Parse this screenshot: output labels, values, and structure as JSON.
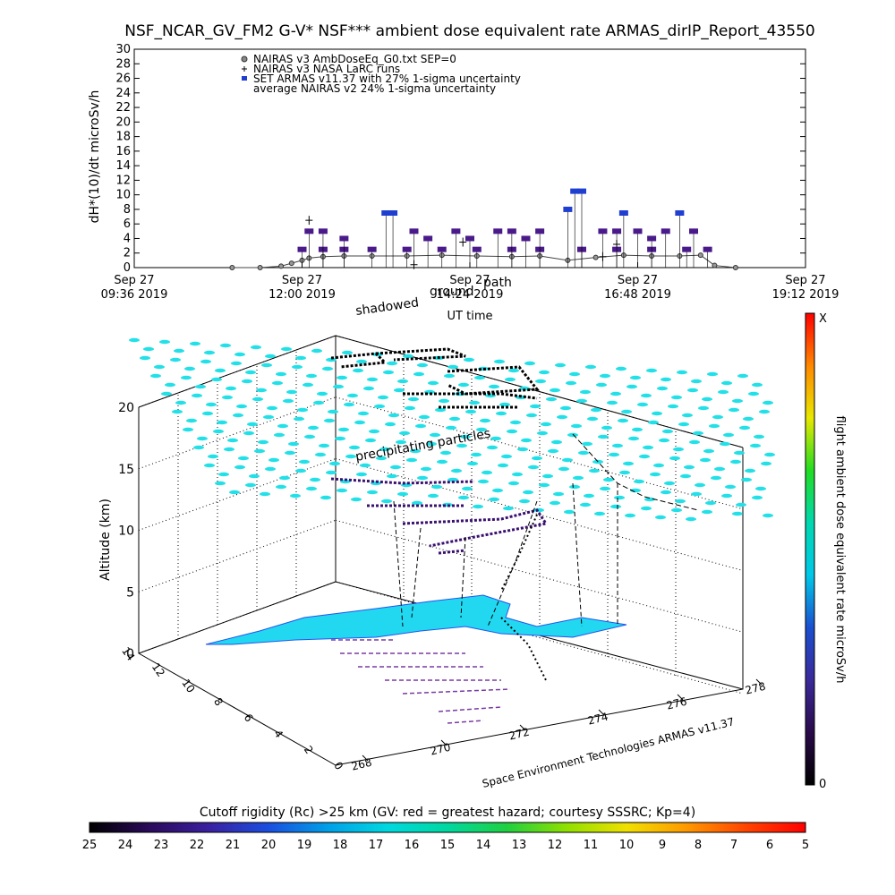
{
  "chart_data": [
    {
      "type": "scatter",
      "title": "NSF_NCAR_GV_FM2 G-V* NSF*** ambient dose equivalent rate ARMAS_dirIP_Report_43550",
      "ylabel": "dH*(10)/dt microSv/h",
      "xlabel": "UT time",
      "ylim": [
        0,
        30
      ],
      "yticks": [
        "0",
        "2",
        "4",
        "6",
        "8",
        "10",
        "12",
        "14",
        "16",
        "18",
        "20",
        "22",
        "24",
        "26",
        "28",
        "30"
      ],
      "xticks": [
        {
          "line1": "Sep 27",
          "line2": "09:36 2019"
        },
        {
          "line1": "Sep 27",
          "line2": "12:00 2019"
        },
        {
          "line1": "Sep 27",
          "line2": "14:24 2019"
        },
        {
          "line1": "Sep 27",
          "line2": "16:48 2019"
        },
        {
          "line1": "Sep 27",
          "line2": "19:12 2019"
        }
      ],
      "xlim_hours": [
        9.6,
        19.2
      ],
      "legend": [
        {
          "symbol": "circle",
          "color": "#555555",
          "label": "NAIRAS v3 AmbDoseEq_G0.txt SEP=0"
        },
        {
          "symbol": "plus",
          "color": "#000000",
          "label": "NAIRAS v3 NASA LaRC runs"
        },
        {
          "symbol": "square",
          "color": "#1f3fd0",
          "label": "SET ARMAS v11.37 with 27% 1-sigma uncertainty"
        },
        {
          "symbol": "none",
          "color": "#000000",
          "label": "average NAIRAS v2 24% 1-sigma uncertainty"
        }
      ],
      "legend_position": "top-left",
      "overlay_labels": [
        "shadowed",
        "ground",
        "path"
      ],
      "series": [
        {
          "name": "NAIRAS v3 AmbDoseEq_G0.txt SEP=0",
          "color": "#444444",
          "points": [
            [
              11.0,
              0
            ],
            [
              11.4,
              0
            ],
            [
              11.7,
              0.2
            ],
            [
              11.85,
              0.6
            ],
            [
              12.0,
              1.0
            ],
            [
              12.1,
              1.3
            ],
            [
              12.3,
              1.5
            ],
            [
              12.6,
              1.6
            ],
            [
              13.0,
              1.6
            ],
            [
              13.5,
              1.6
            ],
            [
              14.0,
              1.7
            ],
            [
              14.5,
              1.6
            ],
            [
              15.0,
              1.5
            ],
            [
              15.4,
              1.6
            ],
            [
              15.8,
              1.0
            ],
            [
              16.2,
              1.4
            ],
            [
              16.6,
              1.7
            ],
            [
              17.0,
              1.6
            ],
            [
              17.4,
              1.6
            ],
            [
              17.7,
              1.7
            ],
            [
              17.9,
              0.3
            ],
            [
              18.2,
              0
            ]
          ]
        },
        {
          "name": "NAIRAS v3 NASA LaRC runs",
          "color": "#000000",
          "points": [
            [
              12.1,
              6.5
            ],
            [
              13.6,
              0.4
            ],
            [
              14.3,
              3.5
            ],
            [
              16.3,
              1.5
            ],
            [
              16.5,
              3.2
            ]
          ]
        },
        {
          "name": "SET ARMAS v11.37 with 27% 1-sigma uncertainty",
          "color": "#4a1a8a",
          "points": [
            [
              12.0,
              2.5
            ],
            [
              12.3,
              2.5
            ],
            [
              12.6,
              2.5
            ],
            [
              13.0,
              2.5
            ],
            [
              13.5,
              2.5
            ],
            [
              14.0,
              2.5
            ],
            [
              14.5,
              2.5
            ],
            [
              15.0,
              2.5
            ],
            [
              15.4,
              2.5
            ],
            [
              16.0,
              2.5
            ],
            [
              16.5,
              2.5
            ],
            [
              17.0,
              2.5
            ],
            [
              17.5,
              2.5
            ],
            [
              17.8,
              2.5
            ],
            [
              12.1,
              5.0
            ],
            [
              12.3,
              5.0
            ],
            [
              12.6,
              4.0
            ],
            [
              13.2,
              7.5
            ],
            [
              13.3,
              7.5
            ],
            [
              13.6,
              5.0
            ],
            [
              13.8,
              4.0
            ],
            [
              14.2,
              5.0
            ],
            [
              14.4,
              4.0
            ],
            [
              14.8,
              5.0
            ],
            [
              15.0,
              5.0
            ],
            [
              15.2,
              4.0
            ],
            [
              15.4,
              5.0
            ],
            [
              15.8,
              8.0
            ],
            [
              15.9,
              10.5
            ],
            [
              16.0,
              10.5
            ],
            [
              16.3,
              5.0
            ],
            [
              16.5,
              5.0
            ],
            [
              16.6,
              7.5
            ],
            [
              16.8,
              5.0
            ],
            [
              17.0,
              4.0
            ],
            [
              17.2,
              5.0
            ],
            [
              17.4,
              7.5
            ],
            [
              17.6,
              5.0
            ]
          ]
        }
      ]
    },
    {
      "type": "scatter",
      "ylabel": "Altitude (km)",
      "zticks": [
        "0",
        "5",
        "10",
        "15",
        "20"
      ],
      "y_axis_ticks": [
        "0",
        "2",
        "4",
        "6",
        "8",
        "10",
        "12",
        "14"
      ],
      "x_axis_ticks": [
        "268",
        "270",
        "272",
        "274",
        "276",
        "278"
      ],
      "annotations": [
        "precipitating particles"
      ],
      "credit": "Space Environment Technologies ARMAS v11.37",
      "colorbar": {
        "label": "flight ambient dose equivalent rate microSv/h",
        "top": "X",
        "bottom": "0",
        "colors": [
          "#000000",
          "#2a0a4a",
          "#3a2a9a",
          "#1a4fd0",
          "#00c8e8",
          "#00d8b0",
          "#22dd22",
          "#e8e800",
          "#ff8800",
          "#ff0000"
        ]
      }
    },
    {
      "type": "heatmap",
      "colorbar_title": "Cutoff rigidity (Rc) >25 km (GV: red = greatest hazard; courtesy SSSRC; Kp=4)",
      "ticks": [
        "25",
        "24",
        "23",
        "22",
        "21",
        "20",
        "19",
        "18",
        "17",
        "16",
        "15",
        "14",
        "13",
        "12",
        "11",
        "10",
        "9",
        "8",
        "7",
        "6",
        "5"
      ],
      "colors": [
        "#000000",
        "#2a0a5a",
        "#3a20a0",
        "#1a4ee0",
        "#00a0e8",
        "#00d8e0",
        "#00d8a0",
        "#20d040",
        "#90e000",
        "#f0e000",
        "#ff9900",
        "#ff4400",
        "#ff0000"
      ]
    }
  ]
}
